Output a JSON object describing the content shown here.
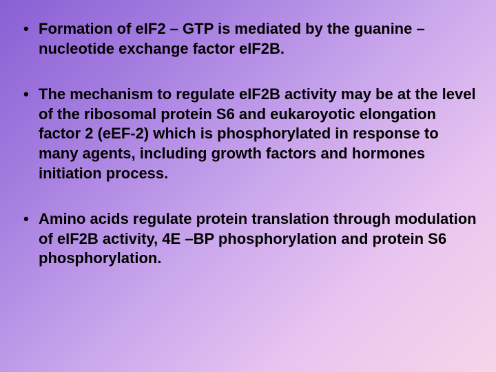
{
  "slide": {
    "background": {
      "gradient_start": "#8a5fd4",
      "gradient_mid1": "#a67fe0",
      "gradient_mid2": "#c9a5ec",
      "gradient_mid3": "#e8c5f0",
      "gradient_end": "#f5d5e8"
    },
    "text_color": "#000000",
    "font_size": 22,
    "font_weight": "bold",
    "bullets": [
      {
        "text": "Formation of eIF2 – GTP is mediated by the guanine –nucleotide exchange factor eIF2B."
      },
      {
        "text": "The mechanism to regulate eIF2B  activity may be at the level of the ribosomal protein S6 and eukaroyotic elongation factor 2 (eEF-2) which is phosphorylated in response to many agents, including growth factors and hormones initiation process."
      },
      {
        "text": " Amino acids regulate protein translation through modulation of eIF2B  activity, 4E –BP phosphorylation and protein S6 phosphorylation."
      }
    ]
  }
}
